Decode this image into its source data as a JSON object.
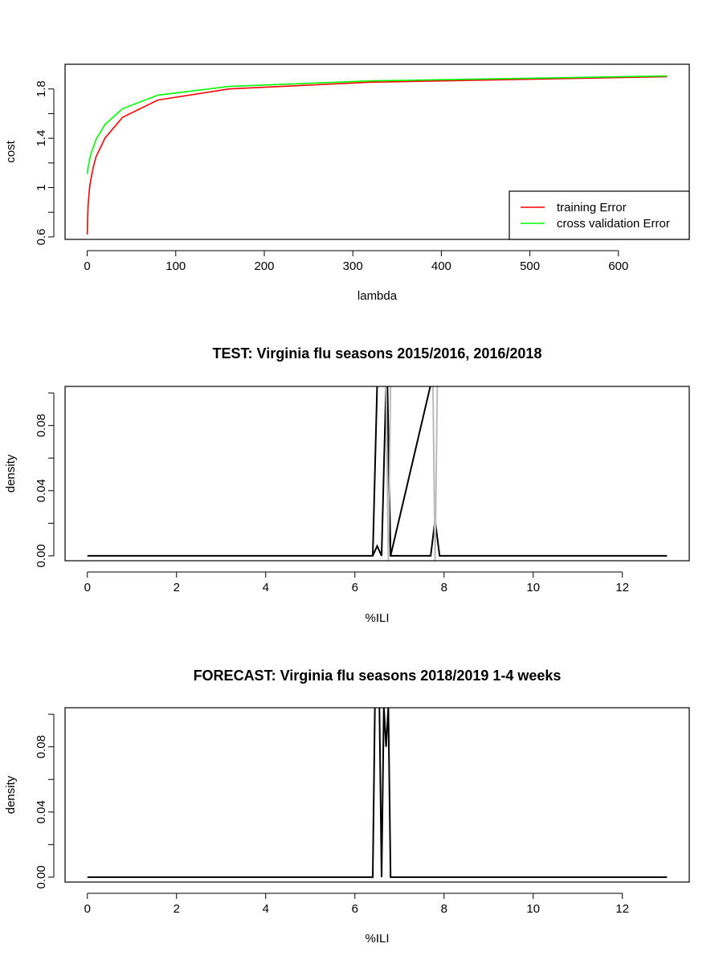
{
  "chart_data": [
    {
      "id": "cost",
      "type": "line",
      "title": "",
      "xlabel": "lambda",
      "ylabel": "cost",
      "xlim": [
        -25,
        680
      ],
      "ylim": [
        0.58,
        2.0
      ],
      "xticks": [
        0,
        100,
        200,
        300,
        400,
        500,
        600
      ],
      "yticks": [
        0.6,
        1.0,
        1.4,
        1.8
      ],
      "yminor": [
        0.8,
        1.2,
        1.6
      ],
      "legend": {
        "position": "bottom-right"
      },
      "series": [
        {
          "name": "training Error",
          "color": "#ff0000",
          "x": [
            0,
            0.5,
            1,
            2,
            3,
            5,
            7,
            10,
            20,
            40,
            80,
            160,
            320,
            655
          ],
          "y": [
            0.62,
            0.75,
            0.85,
            0.95,
            1.02,
            1.1,
            1.17,
            1.25,
            1.4,
            1.57,
            1.71,
            1.8,
            1.855,
            1.9
          ]
        },
        {
          "name": "cross validation Error",
          "color": "#00ff00",
          "x": [
            0,
            1,
            2,
            3,
            5,
            7,
            10,
            20,
            40,
            80,
            160,
            320,
            655
          ],
          "y": [
            1.11,
            1.16,
            1.2,
            1.24,
            1.29,
            1.33,
            1.39,
            1.51,
            1.64,
            1.75,
            1.82,
            1.865,
            1.905
          ]
        }
      ]
    },
    {
      "id": "test",
      "type": "line",
      "title": "TEST: Virginia  flu seasons 2015/2016, 2016/2018",
      "xlabel": "%ILI",
      "ylabel": "density",
      "xlim": [
        -0.5,
        13.5
      ],
      "ylim": [
        -0.003,
        0.104
      ],
      "xticks": [
        0,
        2,
        4,
        6,
        8,
        10,
        12
      ],
      "yticks": [
        0.0,
        0.04,
        0.08
      ],
      "ytick_labels": [
        "0.00",
        "0.04",
        "0.08"
      ],
      "yminor": [
        0.02,
        0.06,
        0.1
      ],
      "series": [
        {
          "name": "",
          "color": "#000000",
          "x": [
            0,
            6.4,
            6.5,
            6.6,
            6.63,
            6.7,
            6.73,
            6.8,
            7.7,
            7.8,
            7.9,
            13
          ],
          "y": [
            0,
            0,
            0.105,
            0.105,
            0.105,
            0.105,
            0.105,
            0,
            0,
            0.022,
            0,
            0
          ]
        },
        {
          "name": "",
          "color": "#000000",
          "x": [
            6.4,
            6.5,
            6.6,
            6.7,
            6.8,
            7.7,
            7.8,
            7.9
          ],
          "y": [
            0,
            0.006,
            0,
            0.105,
            0,
            0.105,
            0.105,
            0.105
          ]
        },
        {
          "name": "",
          "color": "#bbbbbb",
          "x": [
            6.7,
            6.75,
            6.8,
            7.75,
            7.8,
            7.85
          ],
          "y": [
            0.105,
            -0.003,
            0.105,
            0.105,
            -0.003,
            0.105
          ]
        }
      ]
    },
    {
      "id": "forecast",
      "type": "line",
      "title": "FORECAST: Virginia flu seasons 2018/2019 1-4 weeks",
      "xlabel": "%ILI",
      "ylabel": "density",
      "xlim": [
        -0.5,
        13.5
      ],
      "ylim": [
        -0.003,
        0.104
      ],
      "xticks": [
        0,
        2,
        4,
        6,
        8,
        10,
        12
      ],
      "yticks": [
        0.0,
        0.04,
        0.08
      ],
      "ytick_labels": [
        "0.00",
        "0.04",
        "0.08"
      ],
      "yminor": [
        0.02,
        0.06,
        0.1
      ],
      "series": [
        {
          "name": "",
          "color": "#000000",
          "x": [
            0,
            6.4,
            6.45,
            6.55,
            6.6,
            6.65,
            6.7,
            6.75,
            6.8,
            13
          ],
          "y": [
            0,
            0,
            0.105,
            0.105,
            0,
            0.105,
            0.08,
            0.105,
            0,
            0
          ]
        }
      ]
    }
  ]
}
